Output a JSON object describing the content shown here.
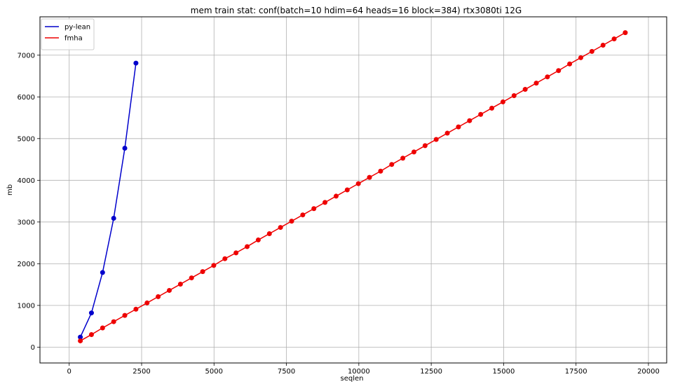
{
  "chart_data": {
    "type": "line",
    "title": "mem train stat: conf(batch=10 hdim=64 heads=16 block=384) rtx3080ti 12G",
    "xlabel": "seqlen",
    "ylabel": "mb",
    "xlim": [
      -1010,
      20630
    ],
    "ylim": [
      -380,
      7920
    ],
    "xticks": [
      0,
      2500,
      5000,
      7500,
      10000,
      12500,
      15000,
      17500,
      20000
    ],
    "yticks": [
      0,
      1000,
      2000,
      3000,
      4000,
      5000,
      6000,
      7000
    ],
    "grid": true,
    "legend_position": "top-left",
    "series": [
      {
        "name": "py-lean",
        "color": "#0000cc",
        "x": [
          384,
          768,
          1152,
          1536,
          1920,
          2304
        ],
        "y": [
          240,
          820,
          1790,
          3090,
          4770,
          6810
        ]
      },
      {
        "name": "fmha",
        "color": "#ee0000",
        "x": [
          384,
          768,
          1152,
          1536,
          1920,
          2304,
          2688,
          3072,
          3456,
          3840,
          4224,
          4608,
          4992,
          5376,
          5760,
          6144,
          6528,
          6912,
          7296,
          7680,
          8064,
          8448,
          8832,
          9216,
          9600,
          9984,
          10368,
          10752,
          11136,
          11520,
          11904,
          12288,
          12672,
          13056,
          13440,
          13824,
          14208,
          14592,
          14976,
          15360,
          15744,
          16128,
          16512,
          16896,
          17280,
          17664,
          18048,
          18432,
          18816,
          19200
        ],
        "y": [
          150,
          300,
          460,
          610,
          760,
          910,
          1060,
          1210,
          1360,
          1510,
          1660,
          1810,
          1960,
          2120,
          2260,
          2410,
          2570,
          2720,
          2870,
          3020,
          3170,
          3320,
          3470,
          3620,
          3770,
          3920,
          4070,
          4220,
          4380,
          4530,
          4680,
          4830,
          4980,
          5130,
          5280,
          5430,
          5580,
          5730,
          5880,
          6030,
          6180,
          6330,
          6480,
          6630,
          6790,
          6940,
          7090,
          7240,
          7390,
          7540
        ]
      }
    ]
  }
}
